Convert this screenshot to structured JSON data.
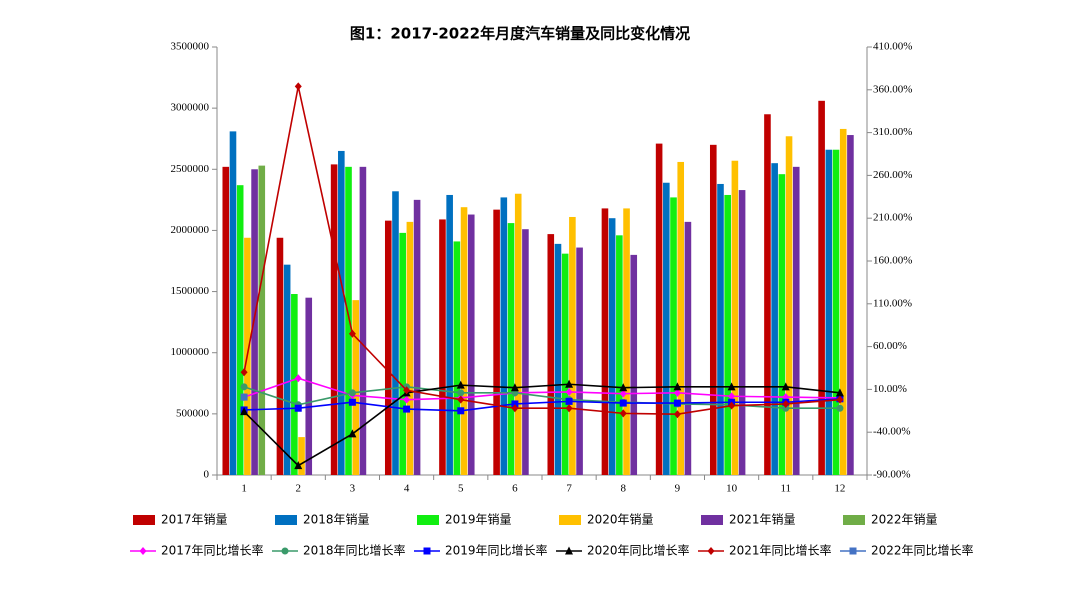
{
  "chart_data": {
    "type": "bar",
    "title": "图1：2017-2022年月度汽车销量及同比变化情况",
    "categories": [
      "1",
      "2",
      "3",
      "4",
      "5",
      "6",
      "7",
      "8",
      "9",
      "10",
      "11",
      "12"
    ],
    "ylim": [
      0,
      3500000
    ],
    "yticks": [
      0,
      500000,
      1000000,
      1500000,
      2000000,
      2500000,
      3000000,
      3500000
    ],
    "y2lim": [
      -90,
      410
    ],
    "y2ticks": [
      {
        "value": -90,
        "label": "-90.00%"
      },
      {
        "value": -40,
        "label": "-40.00%"
      },
      {
        "value": 10,
        "label": "10.00%"
      },
      {
        "value": 60,
        "label": "60.00%"
      },
      {
        "value": 110,
        "label": "110.00%"
      },
      {
        "value": 160,
        "label": "160.00%"
      },
      {
        "value": 210,
        "label": "210.00%"
      },
      {
        "value": 260,
        "label": "260.00%"
      },
      {
        "value": 310,
        "label": "310.00%"
      },
      {
        "value": 360,
        "label": "360.00%"
      },
      {
        "value": 410,
        "label": "410.00%"
      }
    ],
    "series": [
      {
        "name": "2017年销量",
        "type": "bar",
        "color": "#c00000",
        "values": [
          2520000,
          1940000,
          2540000,
          2080000,
          2090000,
          2170000,
          1970000,
          2180000,
          2710000,
          2700000,
          2950000,
          3060000
        ]
      },
      {
        "name": "2018年销量",
        "type": "bar",
        "color": "#0070c0",
        "values": [
          2810000,
          1720000,
          2650000,
          2320000,
          2290000,
          2270000,
          1890000,
          2100000,
          2390000,
          2380000,
          2550000,
          2660000
        ]
      },
      {
        "name": "2019年销量",
        "type": "bar",
        "color": "#11ee11",
        "values": [
          2370000,
          1480000,
          2520000,
          1980000,
          1910000,
          2060000,
          1810000,
          1960000,
          2270000,
          2290000,
          2460000,
          2660000
        ]
      },
      {
        "name": "2020年销量",
        "type": "bar",
        "color": "#ffc000",
        "values": [
          1940000,
          310000,
          1430000,
          2070000,
          2190000,
          2300000,
          2110000,
          2180000,
          2560000,
          2570000,
          2770000,
          2830000
        ]
      },
      {
        "name": "2021年销量",
        "type": "bar",
        "color": "#7030a0",
        "values": [
          2500000,
          1450000,
          2520000,
          2250000,
          2130000,
          2010000,
          1860000,
          1800000,
          2070000,
          2330000,
          2520000,
          2780000
        ]
      },
      {
        "name": "2022年销量",
        "type": "bar",
        "color": "#70ad47",
        "values": [
          2530000,
          null,
          null,
          null,
          null,
          null,
          null,
          null,
          null,
          null,
          null,
          null
        ]
      },
      {
        "name": "2017年同比增长率",
        "type": "line",
        "axis": "y2",
        "marker": "diamond",
        "color": "#ff00ff",
        "values": [
          1,
          23,
          3,
          -2,
          0,
          6,
          7,
          5,
          6,
          2,
          1,
          0
        ]
      },
      {
        "name": "2018年同比增长率",
        "type": "line",
        "axis": "y2",
        "marker": "circle",
        "color": "#3a9a6a",
        "values": [
          13,
          -8,
          6,
          13,
          6,
          6,
          -2,
          -5,
          -7,
          -8,
          -12,
          -12
        ]
      },
      {
        "name": "2019年同比增长率",
        "type": "line",
        "axis": "y2",
        "marker": "square",
        "color": "#0000ff",
        "values": [
          -14,
          -12,
          -5,
          -13,
          -15,
          -7,
          -4,
          -6,
          -6,
          -5,
          -5,
          -1
        ]
      },
      {
        "name": "2020年同比增长率",
        "type": "line",
        "axis": "y2",
        "marker": "triangle",
        "color": "#000000",
        "values": [
          -16,
          -79,
          -42,
          6,
          15,
          12,
          16,
          12,
          13,
          13,
          13,
          6
        ]
      },
      {
        "name": "2021年同比增长率",
        "type": "line",
        "axis": "y2",
        "marker": "diamond",
        "color": "#c00000",
        "values": [
          30,
          364,
          75,
          9,
          -2,
          -12,
          -12,
          -18,
          -19,
          -9,
          -7,
          -2
        ]
      },
      {
        "name": "2022年同比增长率",
        "type": "line",
        "axis": "y2",
        "marker": "square",
        "color": "#4472c4",
        "values": [
          1,
          null,
          null,
          null,
          null,
          null,
          null,
          null,
          null,
          null,
          null,
          null
        ]
      }
    ]
  }
}
